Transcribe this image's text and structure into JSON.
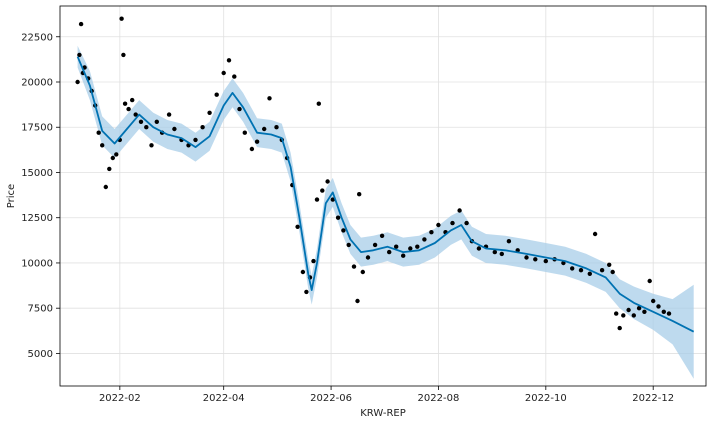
{
  "chart_data": {
    "type": "scatter",
    "title": "",
    "xlabel": "KRW-REP",
    "ylabel": "Price",
    "x_range": [
      "2021-12-29",
      "2022-12-31"
    ],
    "ylim": [
      3200,
      24200
    ],
    "grid": true,
    "legend": "none",
    "x_ticks": [
      {
        "date": "2022-02-01",
        "label": "2022-02"
      },
      {
        "date": "2022-04-01",
        "label": "2022-04"
      },
      {
        "date": "2022-06-01",
        "label": "2022-06"
      },
      {
        "date": "2022-08-01",
        "label": "2022-08"
      },
      {
        "date": "2022-10-01",
        "label": "2022-10"
      },
      {
        "date": "2022-12-01",
        "label": "2022-12"
      }
    ],
    "y_ticks": [
      5000,
      7500,
      10000,
      12500,
      15000,
      17500,
      20000,
      22500
    ],
    "colors": {
      "observed": "#000000",
      "forecast": "#0072B2",
      "interval": "#a8cde8"
    },
    "series": [
      {
        "kind": "observed-points",
        "points": [
          [
            "2022-01-08",
            20000
          ],
          [
            "2022-01-09",
            21500
          ],
          [
            "2022-01-10",
            23200
          ],
          [
            "2022-01-11",
            20500
          ],
          [
            "2022-01-12",
            20800
          ],
          [
            "2022-01-14",
            20200
          ],
          [
            "2022-01-16",
            19500
          ],
          [
            "2022-01-18",
            18700
          ],
          [
            "2022-01-20",
            17200
          ],
          [
            "2022-01-22",
            16500
          ],
          [
            "2022-01-24",
            14200
          ],
          [
            "2022-01-26",
            15200
          ],
          [
            "2022-01-28",
            15800
          ],
          [
            "2022-01-30",
            16000
          ],
          [
            "2022-02-01",
            16800
          ],
          [
            "2022-02-02",
            23500
          ],
          [
            "2022-02-03",
            21500
          ],
          [
            "2022-02-04",
            18800
          ],
          [
            "2022-02-06",
            18500
          ],
          [
            "2022-02-08",
            19000
          ],
          [
            "2022-02-10",
            18200
          ],
          [
            "2022-02-13",
            17800
          ],
          [
            "2022-02-16",
            17500
          ],
          [
            "2022-02-19",
            16500
          ],
          [
            "2022-02-22",
            17800
          ],
          [
            "2022-02-25",
            17200
          ],
          [
            "2022-03-01",
            18200
          ],
          [
            "2022-03-04",
            17400
          ],
          [
            "2022-03-08",
            16800
          ],
          [
            "2022-03-12",
            16500
          ],
          [
            "2022-03-16",
            16800
          ],
          [
            "2022-03-20",
            17500
          ],
          [
            "2022-03-24",
            18300
          ],
          [
            "2022-03-28",
            19300
          ],
          [
            "2022-04-01",
            20500
          ],
          [
            "2022-04-04",
            21200
          ],
          [
            "2022-04-07",
            20300
          ],
          [
            "2022-04-10",
            18500
          ],
          [
            "2022-04-13",
            17200
          ],
          [
            "2022-04-17",
            16300
          ],
          [
            "2022-04-20",
            16700
          ],
          [
            "2022-04-24",
            17400
          ],
          [
            "2022-04-27",
            19100
          ],
          [
            "2022-05-01",
            17500
          ],
          [
            "2022-05-04",
            16800
          ],
          [
            "2022-05-07",
            15800
          ],
          [
            "2022-05-10",
            14300
          ],
          [
            "2022-05-13",
            12000
          ],
          [
            "2022-05-16",
            9500
          ],
          [
            "2022-05-18",
            8400
          ],
          [
            "2022-05-20",
            9200
          ],
          [
            "2022-05-22",
            10100
          ],
          [
            "2022-05-24",
            13500
          ],
          [
            "2022-05-25",
            18800
          ],
          [
            "2022-05-27",
            14000
          ],
          [
            "2022-05-30",
            14500
          ],
          [
            "2022-06-02",
            13500
          ],
          [
            "2022-06-05",
            12500
          ],
          [
            "2022-06-08",
            11800
          ],
          [
            "2022-06-11",
            11000
          ],
          [
            "2022-06-14",
            9800
          ],
          [
            "2022-06-16",
            7900
          ],
          [
            "2022-06-17",
            13800
          ],
          [
            "2022-06-19",
            9500
          ],
          [
            "2022-06-22",
            10300
          ],
          [
            "2022-06-26",
            11000
          ],
          [
            "2022-06-30",
            11500
          ],
          [
            "2022-07-04",
            10600
          ],
          [
            "2022-07-08",
            10900
          ],
          [
            "2022-07-12",
            10400
          ],
          [
            "2022-07-16",
            10800
          ],
          [
            "2022-07-20",
            10900
          ],
          [
            "2022-07-24",
            11300
          ],
          [
            "2022-07-28",
            11700
          ],
          [
            "2022-08-01",
            12100
          ],
          [
            "2022-08-05",
            11700
          ],
          [
            "2022-08-09",
            12200
          ],
          [
            "2022-08-13",
            12900
          ],
          [
            "2022-08-17",
            12200
          ],
          [
            "2022-08-20",
            11200
          ],
          [
            "2022-08-24",
            10800
          ],
          [
            "2022-08-28",
            10900
          ],
          [
            "2022-09-02",
            10600
          ],
          [
            "2022-09-06",
            10500
          ],
          [
            "2022-09-10",
            11200
          ],
          [
            "2022-09-15",
            10700
          ],
          [
            "2022-09-20",
            10300
          ],
          [
            "2022-09-25",
            10200
          ],
          [
            "2022-10-01",
            10100
          ],
          [
            "2022-10-06",
            10200
          ],
          [
            "2022-10-11",
            10000
          ],
          [
            "2022-10-16",
            9700
          ],
          [
            "2022-10-21",
            9600
          ],
          [
            "2022-10-26",
            9400
          ],
          [
            "2022-10-29",
            11600
          ],
          [
            "2022-11-02",
            9600
          ],
          [
            "2022-11-06",
            9900
          ],
          [
            "2022-11-08",
            9500
          ],
          [
            "2022-11-10",
            7200
          ],
          [
            "2022-11-12",
            6400
          ],
          [
            "2022-11-14",
            7100
          ],
          [
            "2022-11-17",
            7400
          ],
          [
            "2022-11-20",
            7100
          ],
          [
            "2022-11-23",
            7500
          ],
          [
            "2022-11-26",
            7300
          ],
          [
            "2022-11-29",
            9000
          ],
          [
            "2022-12-01",
            7900
          ],
          [
            "2022-12-04",
            7600
          ],
          [
            "2022-12-07",
            7300
          ],
          [
            "2022-12-10",
            7200
          ]
        ]
      },
      {
        "kind": "forecast-line",
        "points": [
          [
            "2022-01-08",
            21400
          ],
          [
            "2022-01-15",
            19800
          ],
          [
            "2022-01-22",
            17300
          ],
          [
            "2022-01-29",
            16600
          ],
          [
            "2022-02-05",
            17400
          ],
          [
            "2022-02-12",
            18200
          ],
          [
            "2022-02-20",
            17500
          ],
          [
            "2022-02-28",
            17100
          ],
          [
            "2022-03-08",
            16900
          ],
          [
            "2022-03-16",
            16400
          ],
          [
            "2022-03-24",
            17000
          ],
          [
            "2022-04-01",
            18700
          ],
          [
            "2022-04-06",
            19400
          ],
          [
            "2022-04-12",
            18600
          ],
          [
            "2022-04-20",
            17200
          ],
          [
            "2022-04-28",
            17100
          ],
          [
            "2022-05-04",
            16900
          ],
          [
            "2022-05-09",
            15300
          ],
          [
            "2022-05-14",
            12500
          ],
          [
            "2022-05-19",
            9400
          ],
          [
            "2022-05-21",
            8500
          ],
          [
            "2022-05-24",
            10000
          ],
          [
            "2022-05-29",
            13300
          ],
          [
            "2022-06-02",
            13900
          ],
          [
            "2022-06-07",
            12500
          ],
          [
            "2022-06-12",
            11300
          ],
          [
            "2022-06-18",
            10600
          ],
          [
            "2022-06-25",
            10700
          ],
          [
            "2022-07-03",
            10900
          ],
          [
            "2022-07-12",
            10600
          ],
          [
            "2022-07-21",
            10700
          ],
          [
            "2022-07-30",
            11100
          ],
          [
            "2022-08-08",
            11800
          ],
          [
            "2022-08-14",
            12100
          ],
          [
            "2022-08-20",
            11200
          ],
          [
            "2022-08-28",
            10800
          ],
          [
            "2022-09-08",
            10700
          ],
          [
            "2022-09-20",
            10500
          ],
          [
            "2022-10-01",
            10300
          ],
          [
            "2022-10-12",
            10100
          ],
          [
            "2022-10-24",
            9700
          ],
          [
            "2022-11-04",
            9200
          ],
          [
            "2022-11-12",
            8300
          ],
          [
            "2022-11-20",
            7800
          ],
          [
            "2022-12-01",
            7300
          ],
          [
            "2022-12-12",
            6800
          ],
          [
            "2022-12-24",
            6200
          ]
        ]
      },
      {
        "kind": "uncertainty-band",
        "upper": [
          [
            "2022-01-08",
            22000
          ],
          [
            "2022-01-15",
            20600
          ],
          [
            "2022-01-22",
            18100
          ],
          [
            "2022-01-29",
            17400
          ],
          [
            "2022-02-05",
            18200
          ],
          [
            "2022-02-12",
            19000
          ],
          [
            "2022-02-20",
            18300
          ],
          [
            "2022-02-28",
            17900
          ],
          [
            "2022-03-08",
            17700
          ],
          [
            "2022-03-16",
            17200
          ],
          [
            "2022-03-24",
            17800
          ],
          [
            "2022-04-01",
            19500
          ],
          [
            "2022-04-06",
            20200
          ],
          [
            "2022-04-12",
            19400
          ],
          [
            "2022-04-20",
            18000
          ],
          [
            "2022-04-28",
            17900
          ],
          [
            "2022-05-04",
            17700
          ],
          [
            "2022-05-09",
            16100
          ],
          [
            "2022-05-14",
            13300
          ],
          [
            "2022-05-19",
            10200
          ],
          [
            "2022-05-21",
            9300
          ],
          [
            "2022-05-24",
            10800
          ],
          [
            "2022-05-29",
            14100
          ],
          [
            "2022-06-02",
            14700
          ],
          [
            "2022-06-07",
            13300
          ],
          [
            "2022-06-12",
            12100
          ],
          [
            "2022-06-18",
            11400
          ],
          [
            "2022-06-25",
            11500
          ],
          [
            "2022-07-03",
            11700
          ],
          [
            "2022-07-12",
            11400
          ],
          [
            "2022-07-21",
            11500
          ],
          [
            "2022-07-30",
            11900
          ],
          [
            "2022-08-08",
            12600
          ],
          [
            "2022-08-14",
            12900
          ],
          [
            "2022-08-20",
            12000
          ],
          [
            "2022-08-28",
            11600
          ],
          [
            "2022-09-08",
            11500
          ],
          [
            "2022-09-20",
            11300
          ],
          [
            "2022-10-01",
            11100
          ],
          [
            "2022-10-12",
            10900
          ],
          [
            "2022-10-24",
            10500
          ],
          [
            "2022-11-04",
            10000
          ],
          [
            "2022-11-12",
            9100
          ],
          [
            "2022-11-20",
            8700
          ],
          [
            "2022-12-01",
            8300
          ],
          [
            "2022-12-12",
            8000
          ],
          [
            "2022-12-24",
            8800
          ]
        ],
        "lower": [
          [
            "2022-01-08",
            20800
          ],
          [
            "2022-01-15",
            19000
          ],
          [
            "2022-01-22",
            16500
          ],
          [
            "2022-01-29",
            15800
          ],
          [
            "2022-02-05",
            16600
          ],
          [
            "2022-02-12",
            17400
          ],
          [
            "2022-02-20",
            16700
          ],
          [
            "2022-02-28",
            16300
          ],
          [
            "2022-03-08",
            16100
          ],
          [
            "2022-03-16",
            15600
          ],
          [
            "2022-03-24",
            16200
          ],
          [
            "2022-04-01",
            17900
          ],
          [
            "2022-04-06",
            18600
          ],
          [
            "2022-04-12",
            17800
          ],
          [
            "2022-04-20",
            16400
          ],
          [
            "2022-04-28",
            16300
          ],
          [
            "2022-05-04",
            16100
          ],
          [
            "2022-05-09",
            14500
          ],
          [
            "2022-05-14",
            11700
          ],
          [
            "2022-05-19",
            8600
          ],
          [
            "2022-05-21",
            7700
          ],
          [
            "2022-05-24",
            9200
          ],
          [
            "2022-05-29",
            12500
          ],
          [
            "2022-06-02",
            13100
          ],
          [
            "2022-06-07",
            11700
          ],
          [
            "2022-06-12",
            10500
          ],
          [
            "2022-06-18",
            9800
          ],
          [
            "2022-06-25",
            9900
          ],
          [
            "2022-07-03",
            10100
          ],
          [
            "2022-07-12",
            9800
          ],
          [
            "2022-07-21",
            9900
          ],
          [
            "2022-07-30",
            10300
          ],
          [
            "2022-08-08",
            11000
          ],
          [
            "2022-08-14",
            11300
          ],
          [
            "2022-08-20",
            10400
          ],
          [
            "2022-08-28",
            10000
          ],
          [
            "2022-09-08",
            9900
          ],
          [
            "2022-09-20",
            9700
          ],
          [
            "2022-10-01",
            9500
          ],
          [
            "2022-10-12",
            9300
          ],
          [
            "2022-10-24",
            8900
          ],
          [
            "2022-11-04",
            8400
          ],
          [
            "2022-11-12",
            7500
          ],
          [
            "2022-11-20",
            6900
          ],
          [
            "2022-12-01",
            6300
          ],
          [
            "2022-12-12",
            5500
          ],
          [
            "2022-12-24",
            3600
          ]
        ]
      }
    ]
  }
}
